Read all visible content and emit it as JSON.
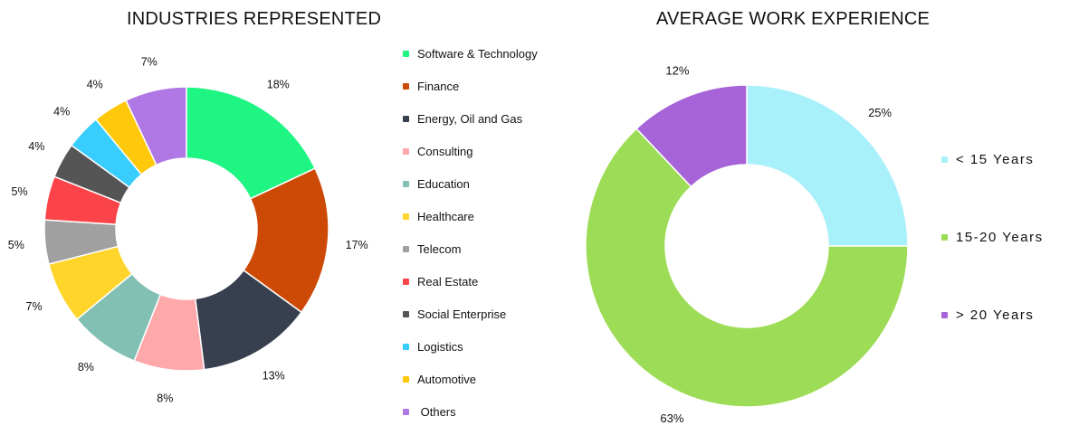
{
  "chart_data": [
    {
      "type": "pie",
      "title": "INDUSTRIES REPRESENTED",
      "donut": true,
      "legend_position": "right",
      "slices": [
        {
          "label": "Software & Technology",
          "value": 18,
          "display": "18%",
          "color": "#1ef582"
        },
        {
          "label": "Finance",
          "value": 17,
          "display": "17%",
          "color": "#cc4a06"
        },
        {
          "label": "Energy, Oil and Gas",
          "value": 13,
          "display": "13%",
          "color": "#38404f"
        },
        {
          "label": "Consulting",
          "value": 8,
          "display": "8%",
          "color": "#ffa8aa"
        },
        {
          "label": "Education",
          "value": 8,
          "display": "8%",
          "color": "#82c0b4"
        },
        {
          "label": "Healthcare",
          "value": 7,
          "display": "7%",
          "color": "#ffd52c"
        },
        {
          "label": "Telecom",
          "value": 5,
          "display": "5%",
          "color": "#a0a0a0"
        },
        {
          "label": "Real Estate",
          "value": 5,
          "display": "5%",
          "color": "#fb4449"
        },
        {
          "label": "Social Enterprise",
          "value": 4,
          "display": "4%",
          "color": "#555555"
        },
        {
          "label": "Logistics",
          "value": 4,
          "display": "4%",
          "color": "#38cdfc"
        },
        {
          "label": "Automotive",
          "value": 4,
          "display": "4%",
          "color": "#ffc80b"
        },
        {
          "label": "Others",
          "value": 7,
          "display": "7%",
          "color": "#b078e4"
        }
      ],
      "legend_labels": [
        "Software & Technology",
        "Finance",
        "Energy, Oil and Gas",
        "Consulting",
        "Education",
        "Healthcare",
        "Telecom",
        "Real Estate",
        "Social Enterprise",
        "Logistics",
        "Automotive",
        " Others"
      ]
    },
    {
      "type": "pie",
      "title": "AVERAGE WORK EXPERIENCE",
      "donut": true,
      "legend_position": "right",
      "slices": [
        {
          "label": "< 15 Years",
          "value": 25,
          "display": "25%",
          "color": "#a8f0fa"
        },
        {
          "label": "15-20 Years",
          "value": 63,
          "display": "63%",
          "color": "#9ddc56"
        },
        {
          "label": "> 20 Years",
          "value": 12,
          "display": "12%",
          "color": "#a763d8"
        }
      ],
      "legend_labels": [
        "< 15 Years",
        "15-20 Years",
        "> 20 Years"
      ]
    }
  ]
}
